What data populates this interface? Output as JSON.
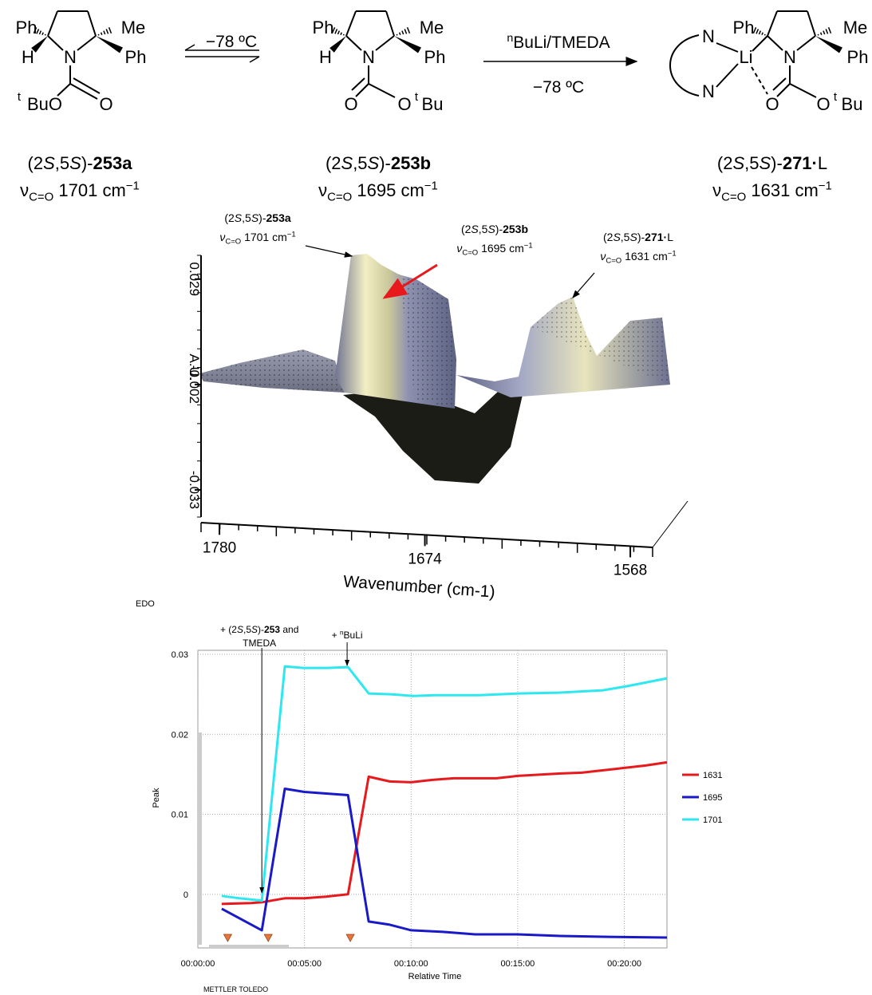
{
  "scheme": {
    "compounds": [
      {
        "atoms": [
          "Ph",
          "Me",
          "H",
          "N",
          "Ph",
          "t",
          "BuO",
          "O"
        ],
        "name": [
          "(2",
          "S",
          ",5",
          "S",
          ")-",
          "253a"
        ],
        "ir": [
          "ν",
          "C=O",
          " 1701 cm",
          "−1"
        ]
      },
      {
        "atoms": [
          "Ph",
          "Me",
          "H",
          "N",
          "Ph",
          "O",
          "O",
          "t",
          "Bu"
        ],
        "name": [
          "(2",
          "S",
          ",5",
          "S",
          ")-",
          "253b"
        ],
        "ir": [
          "ν",
          "C=O",
          " 1695 cm",
          "−1"
        ]
      },
      {
        "atoms": [
          "N",
          "N",
          "Ph",
          "Me",
          "Li",
          "N",
          "Ph",
          "O",
          "O",
          "t",
          "Bu"
        ],
        "name": [
          "(2",
          "S",
          ",5",
          "S",
          ")-",
          "271·",
          "L"
        ],
        "ir": [
          "ν",
          "C=O",
          " 1631 cm",
          "−1"
        ]
      }
    ],
    "arrows": [
      {
        "above": "−78 ºC"
      },
      {
        "above": [
          "n",
          "BuLi/TMEDA"
        ],
        "below": "−78 ºC"
      }
    ]
  },
  "chart_data": [
    {
      "type": "surface3d",
      "xlabel": "Wavenumber (cm-1)",
      "ylabel": "A.U.",
      "xlim": [
        1789.5,
        1556.5
      ],
      "xticks": [
        1780,
        1674,
        1568
      ],
      "ylim": [
        -0.041,
        0.036
      ],
      "yticks": [
        0.029,
        -0.002,
        -0.033
      ],
      "annotations": [
        {
          "name": [
            "(2",
            "S",
            ",5",
            "S",
            ")-",
            "253a"
          ],
          "ir": [
            "ν",
            "C=O",
            " 1701 cm",
            "−1"
          ],
          "color": "#000000"
        },
        {
          "name": [
            "(2",
            "S",
            ",5",
            "S",
            ")-",
            "253b"
          ],
          "ir": [
            "ν",
            "C=O",
            " 1695 cm",
            "−1"
          ],
          "color": "#e8191c"
        },
        {
          "name": [
            "(2",
            "S",
            ",5",
            "S",
            ")-",
            "271·",
            "L"
          ],
          "ir": [
            "ν",
            "C=O",
            " 1631 cm",
            "−1"
          ],
          "color": "#000000"
        }
      ]
    },
    {
      "type": "line",
      "header": "EDO",
      "footer": "METTLER TOLEDO",
      "xlabel": "Relative Time",
      "ylabel": "Peak",
      "xlim": [
        0,
        22
      ],
      "xticks": [
        {
          "value": 0,
          "label": "00:00:00"
        },
        {
          "value": 5,
          "label": "00:05:00"
        },
        {
          "value": 10,
          "label": "00:10:00"
        },
        {
          "value": 15,
          "label": "00:15:00"
        },
        {
          "value": 20,
          "label": "00:20:00"
        }
      ],
      "ylim": [
        -0.0067,
        0.0305
      ],
      "yticks": [
        0.03,
        0.02,
        0.01,
        0
      ],
      "grid": true,
      "legend": "right",
      "series": [
        {
          "name": "1631",
          "color": "#e8191c",
          "x": [
            1.12,
            2.5,
            3.0,
            4.08,
            5.0,
            6.0,
            7.04,
            8.01,
            9.0,
            10.0,
            11.0,
            12.0,
            14.0,
            15.0,
            17.0,
            18.0,
            19.0,
            20.0,
            21.0,
            22.0
          ],
          "values": [
            -0.0012,
            -0.0011,
            -0.001,
            -0.0005,
            -0.0005,
            -0.0003,
            0.0,
            0.0147,
            0.0141,
            0.014,
            0.0143,
            0.0145,
            0.0145,
            0.0148,
            0.0151,
            0.0152,
            0.0155,
            0.0158,
            0.0161,
            0.0165
          ]
        },
        {
          "name": "1695",
          "color": "#1919c8",
          "x": [
            1.12,
            3.0,
            4.08,
            5.0,
            7.04,
            8.01,
            9.0,
            10.0,
            11.5,
            13.0,
            15.0,
            17.0,
            19.0,
            22.0
          ],
          "values": [
            -0.0018,
            -0.0045,
            0.0132,
            0.0128,
            0.0124,
            -0.0034,
            -0.0038,
            -0.0045,
            -0.0047,
            -0.005,
            -0.005,
            -0.0052,
            -0.0053,
            -0.0054
          ]
        },
        {
          "name": "1701",
          "color": "#2ee8f0",
          "x": [
            1.12,
            1.95,
            3.0,
            4.08,
            4.94,
            6.07,
            7.04,
            8.01,
            9.05,
            10.1,
            11.1,
            12.1,
            13.2,
            15.06,
            16.9,
            19.0,
            20.1,
            22.0
          ],
          "values": [
            -0.0002,
            -0.0005,
            -0.0008,
            0.0285,
            0.0283,
            0.0283,
            0.0284,
            0.0251,
            0.025,
            0.0248,
            0.0249,
            0.0249,
            0.0249,
            0.0251,
            0.0252,
            0.0255,
            0.026,
            0.027
          ]
        }
      ],
      "markers": [
        1.4,
        3.3,
        7.15
      ],
      "annotations": [
        {
          "lines": [
            [
              "+ (2",
              "S",
              ",5",
              "S",
              ")-",
              "253",
              " and"
            ],
            [
              "TMEDA"
            ]
          ],
          "x": 3.0
        },
        {
          "lines": [
            [
              "+ ",
              "n",
              "BuLi"
            ]
          ],
          "x": 7.0
        }
      ]
    }
  ]
}
